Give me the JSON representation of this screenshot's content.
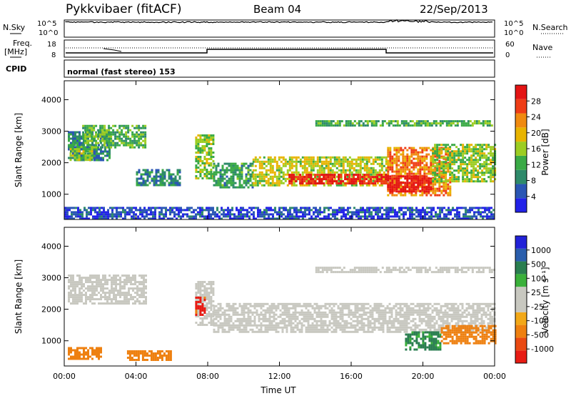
{
  "header": {
    "station": "Pykkvibaer (fitACF)",
    "beam": "Beam 04",
    "date": "22/Sep/2013"
  },
  "aux_panels": {
    "nsky_label": "N.Sky",
    "nsky_ticks": [
      "10^5",
      "10^0"
    ],
    "nsearch_label": "N.Search",
    "nsearch_ticks": [
      "10^5",
      "10^0"
    ],
    "freq_label_1": "Freq.",
    "freq_label_2": "[MHz]",
    "freq_ticks": [
      "18",
      "8"
    ],
    "nave_label": "Nave",
    "nave_ticks": [
      "60",
      "0"
    ],
    "cpid_label": "CPID",
    "cpid_text": "normal (fast stereo) 153"
  },
  "colors": {
    "power_scale": [
      "#2222e8",
      "#2a56b4",
      "#2e8a6a",
      "#3aaa46",
      "#9ccd22",
      "#e8b400",
      "#f08a10",
      "#ef3d16",
      "#e41414"
    ],
    "velocity_scale": [
      "#e81c14",
      "#ea4a12",
      "#ee8010",
      "#f2a818",
      "#c8c8c0",
      "#c8c8c0",
      "#3ab03a",
      "#2a7e50",
      "#2a5eac",
      "#2222d8"
    ],
    "noise_dots": "#8a8a8a"
  },
  "chart_data": [
    {
      "type": "heatmap",
      "title": "",
      "xlabel": "",
      "ylabel": "Slant Range [km]",
      "ylim": [
        200,
        4600
      ],
      "xlim": [
        0,
        24
      ],
      "y_ticks": [
        "1000",
        "2000",
        "3000",
        "4000"
      ],
      "colorbar": {
        "label": "Power [dB]",
        "ticks": [
          "4",
          "8",
          "12",
          "16",
          "20",
          "24",
          "28"
        ],
        "range": [
          0,
          30
        ]
      },
      "bands": [
        {
          "t_start": 0.2,
          "t_end": 2.5,
          "r_low": 2100,
          "r_high": 3000,
          "value": 8
        },
        {
          "t_start": 1.0,
          "t_end": 4.5,
          "r_low": 2500,
          "r_high": 3200,
          "value": 12
        },
        {
          "t_start": 0.3,
          "t_end": 1.5,
          "r_low": 2100,
          "r_high": 2600,
          "value": 14
        },
        {
          "t_start": 4.0,
          "t_end": 6.5,
          "r_low": 1300,
          "r_high": 1800,
          "value": 8
        },
        {
          "t_start": 7.3,
          "t_end": 8.3,
          "r_low": 1500,
          "r_high": 2900,
          "value": 14
        },
        {
          "t_start": 8.3,
          "t_end": 10.5,
          "r_low": 1200,
          "r_high": 2000,
          "value": 10
        },
        {
          "t_start": 10.5,
          "t_end": 18.0,
          "r_low": 1300,
          "r_high": 2200,
          "value": 16
        },
        {
          "t_start": 12.5,
          "t_end": 18.0,
          "r_low": 1350,
          "r_high": 1650,
          "value": 28
        },
        {
          "t_start": 18.0,
          "t_end": 21.5,
          "r_low": 1000,
          "r_high": 2500,
          "value": 22
        },
        {
          "t_start": 18.0,
          "t_end": 20.5,
          "r_low": 1100,
          "r_high": 1600,
          "value": 29
        },
        {
          "t_start": 20.5,
          "t_end": 24.0,
          "r_low": 1400,
          "r_high": 2600,
          "value": 14
        },
        {
          "t_start": 14.0,
          "t_end": 24.0,
          "r_low": 3200,
          "r_high": 3350,
          "value": 12
        },
        {
          "t_start": 0.0,
          "t_end": 24.0,
          "r_low": 250,
          "r_high": 600,
          "value": 4
        }
      ]
    },
    {
      "type": "heatmap",
      "title": "",
      "xlabel": "Time UT",
      "ylabel": "Slant Range [km]",
      "ylim": [
        200,
        4600
      ],
      "xlim": [
        0,
        24
      ],
      "x_ticks": [
        "00:00",
        "04:00",
        "08:00",
        "12:00",
        "16:00",
        "20:00",
        "00:00"
      ],
      "y_ticks": [
        "1000",
        "2000",
        "3000",
        "4000"
      ],
      "colorbar": {
        "label": "Velocity [m s⁻¹]",
        "ticks": [
          "1000",
          "500",
          "100",
          "25",
          "-25",
          "-100",
          "-500",
          "-1000"
        ],
        "range": [
          -1000,
          1000
        ]
      },
      "bands": [
        {
          "t_start": 0.2,
          "t_end": 4.5,
          "r_low": 2200,
          "r_high": 3100,
          "value": 0
        },
        {
          "t_start": 7.3,
          "t_end": 8.3,
          "r_low": 1500,
          "r_high": 2900,
          "value": 0
        },
        {
          "t_start": 8.3,
          "t_end": 24.0,
          "r_low": 1300,
          "r_high": 2200,
          "value": 0
        },
        {
          "t_start": 0.2,
          "t_end": 2.0,
          "r_low": 400,
          "r_high": 800,
          "value": -300
        },
        {
          "t_start": 3.5,
          "t_end": 6.0,
          "r_low": 400,
          "r_high": 700,
          "value": -300
        },
        {
          "t_start": 7.3,
          "t_end": 7.8,
          "r_low": 1800,
          "r_high": 2400,
          "value": -800
        },
        {
          "t_start": 19.0,
          "t_end": 21.0,
          "r_low": 700,
          "r_high": 1300,
          "value": 150
        },
        {
          "t_start": 21.0,
          "t_end": 24.0,
          "r_low": 900,
          "r_high": 1500,
          "value": -300
        },
        {
          "t_start": 14.0,
          "t_end": 24.0,
          "r_low": 3200,
          "r_high": 3350,
          "value": 0
        }
      ]
    }
  ]
}
